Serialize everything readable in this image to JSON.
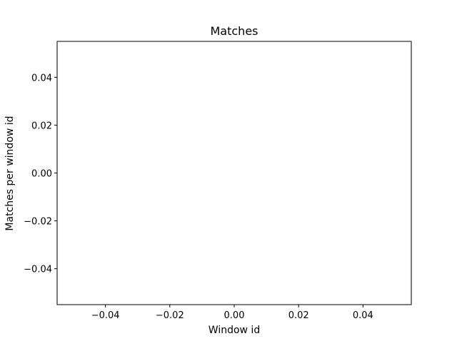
{
  "chart_data": {
    "type": "line",
    "title": "Matches",
    "xlabel": "Window id",
    "ylabel": "Matches per window id",
    "xlim": [
      -0.055,
      0.055
    ],
    "ylim": [
      -0.055,
      0.055
    ],
    "xticks": [
      -0.04,
      -0.02,
      0.0,
      0.02,
      0.04
    ],
    "yticks": [
      -0.04,
      -0.02,
      0.0,
      0.02,
      0.04
    ],
    "xtick_labels": [
      "−0.04",
      "−0.02",
      "0.00",
      "0.02",
      "0.04"
    ],
    "ytick_labels": [
      "−0.04",
      "−0.02",
      "0.00",
      "0.02",
      "0.04"
    ],
    "grid": false,
    "series": [],
    "colors": {
      "axis": "#000000",
      "background": "#ffffff"
    }
  }
}
